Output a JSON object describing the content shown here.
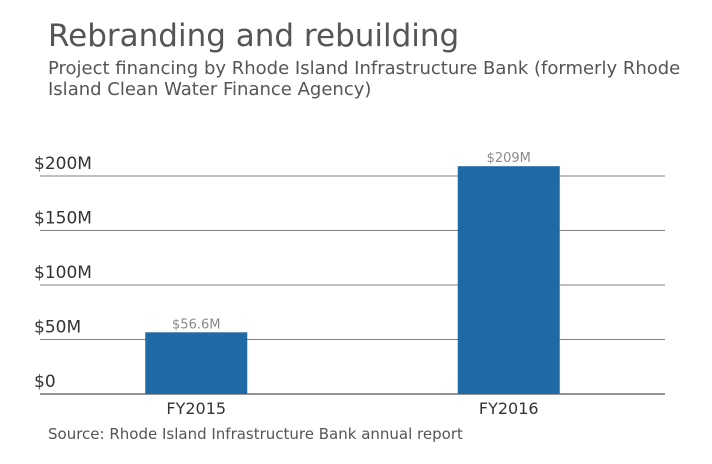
{
  "header": {
    "title": "Rebranding and rebuilding",
    "subtitle": "Project financing by Rhode Island Infrastructure Bank (formerly Rhode Island Clean Water Finance Agency)"
  },
  "footer": {
    "source": "Source: Rhode Island Infrastructure Bank annual report"
  },
  "chart_data": {
    "type": "bar",
    "categories": [
      "FY2015",
      "FY2016"
    ],
    "values": [
      56.6,
      209
    ],
    "data_labels": [
      "$56.6M",
      "$209M"
    ],
    "y_ticks": [
      0,
      50,
      100,
      150,
      200
    ],
    "y_tick_labels": [
      "$0",
      "$50M",
      "$100M",
      "$150M",
      "$200M"
    ],
    "ylim": [
      0,
      200
    ],
    "grid": true,
    "bar_color": "#1f6aa5",
    "grid_color": "#555555"
  }
}
